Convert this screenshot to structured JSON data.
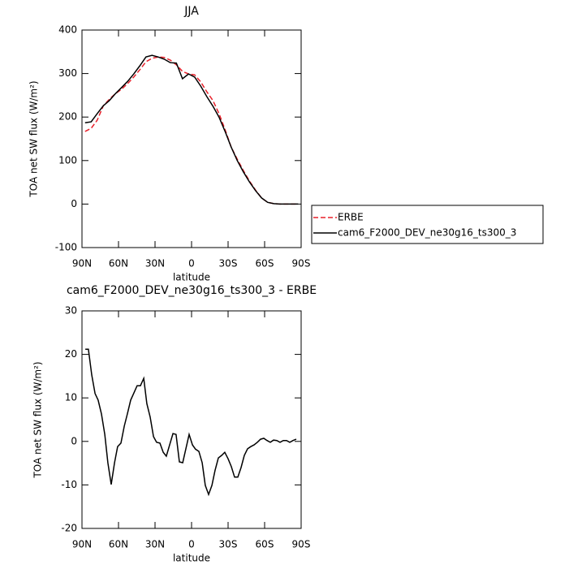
{
  "chart_data": [
    {
      "type": "line",
      "title": "JJA",
      "xlabel": "latitude",
      "ylabel": "TOA net SW flux (W/m²)",
      "x": [
        87.5,
        82.5,
        77.5,
        72.5,
        67.5,
        62.5,
        57.5,
        52.5,
        47.5,
        42.5,
        37.5,
        32.5,
        27.5,
        22.5,
        17.5,
        12.5,
        7.5,
        2.5,
        -2.5,
        -7.5,
        -12.5,
        -17.5,
        -22.5,
        -27.5,
        -32.5,
        -37.5,
        -42.5,
        -47.5,
        -52.5,
        -57.5,
        -62.5,
        -67.5,
        -72.5,
        -77.5,
        -82.5,
        -87.5
      ],
      "series": [
        {
          "name": "ERBE",
          "color": "#e8202a",
          "dash": true,
          "values": [
            167,
            174,
            193,
            226,
            241,
            254,
            264,
            277,
            292,
            309,
            327,
            335,
            338,
            337,
            331,
            320,
            305,
            299,
            297,
            281,
            258,
            238,
            208,
            171,
            131,
            103,
            77,
            53,
            32,
            14,
            4,
            1,
            0,
            0,
            0,
            0
          ]
        },
        {
          "name": "cam6_F2000_DEV_ne30g16_ts300_3",
          "color": "#000000",
          "dash": false,
          "values": [
            187,
            189,
            208,
            226,
            238,
            254,
            268,
            282,
            299,
            318,
            338,
            342,
            338,
            333,
            325,
            324,
            288,
            299,
            292,
            271,
            247,
            225,
            200,
            167,
            131,
            100,
            74,
            51,
            31,
            14,
            4,
            1,
            0,
            0,
            0,
            0
          ]
        }
      ],
      "xlim": [
        90,
        -90
      ],
      "xticks": [
        {
          "value": 90,
          "label": "90N"
        },
        {
          "value": 60,
          "label": "60N"
        },
        {
          "value": 30,
          "label": "30N"
        },
        0,
        {
          "value": -30,
          "label": "30S"
        },
        {
          "value": -60,
          "label": "60S"
        },
        {
          "value": -90,
          "label": "90S"
        }
      ],
      "ylim": [
        -100,
        400
      ],
      "yticks": [
        -100,
        0,
        100,
        200,
        300,
        400
      ],
      "legend": "right"
    },
    {
      "type": "line",
      "title": "cam6_F2000_DEV_ne30g16_ts300_3 - ERBE",
      "xlabel": "latitude",
      "ylabel": "TOA net SW flux (W/m²)",
      "x": [
        87.3,
        84.7,
        82,
        79.3,
        76.7,
        74,
        71.3,
        68.7,
        66,
        63.3,
        60.7,
        58,
        55.3,
        52.7,
        50,
        47.3,
        44.7,
        42,
        39.3,
        36.7,
        34,
        31.3,
        28.7,
        26,
        23.3,
        20.7,
        18,
        15.3,
        12.7,
        10,
        7.3,
        2,
        -0.7,
        -3.3,
        -6,
        -8.7,
        -11.3,
        -14,
        -16.7,
        -19.3,
        -22,
        -24.7,
        -27.3,
        -30,
        -32.7,
        -35.3,
        -38,
        -40.7,
        -43.3,
        -46,
        -48.7,
        -51.3,
        -54,
        -56.7,
        -59.3,
        -62,
        -64.7,
        -67.3,
        -70,
        -72.7,
        -75.3,
        -78,
        -80.7,
        -83.3,
        -86
      ],
      "series": [
        {
          "color": "#000000",
          "dash": false,
          "values": [
            21.2,
            21.2,
            15.3,
            11,
            9.5,
            6.3,
            1.6,
            -4.9,
            -9.9,
            -4.9,
            -1.2,
            -0.4,
            3.5,
            6.3,
            9.5,
            11.2,
            12.8,
            12.8,
            14.5,
            8.7,
            5.6,
            1.1,
            -0.2,
            -0.4,
            -2.5,
            -3.4,
            -0.8,
            1.8,
            1.6,
            -4.7,
            -4.9,
            1.6,
            -0.8,
            -1.8,
            -2.3,
            -4.9,
            -10.1,
            -12.2,
            -10.1,
            -6.7,
            -3.8,
            -3.2,
            -2.5,
            -4,
            -5.8,
            -8.2,
            -8.2,
            -6,
            -3.2,
            -1.7,
            -1.2,
            -0.8,
            -0.2,
            0.5,
            0.7,
            0.2,
            -0.2,
            0.3,
            0.2,
            -0.2,
            0.2,
            0.2,
            -0.2,
            0.2,
            0.5
          ]
        }
      ],
      "xlim": [
        90,
        -90
      ],
      "xticks": [
        {
          "value": 90,
          "label": "90N"
        },
        {
          "value": 60,
          "label": "60N"
        },
        {
          "value": 30,
          "label": "30N"
        },
        0,
        {
          "value": -30,
          "label": "30S"
        },
        {
          "value": -60,
          "label": "60S"
        },
        {
          "value": -90,
          "label": "90S"
        }
      ],
      "ylim": [
        -20,
        30
      ],
      "yticks": [
        -20,
        -10,
        0,
        10,
        20,
        30
      ]
    }
  ]
}
